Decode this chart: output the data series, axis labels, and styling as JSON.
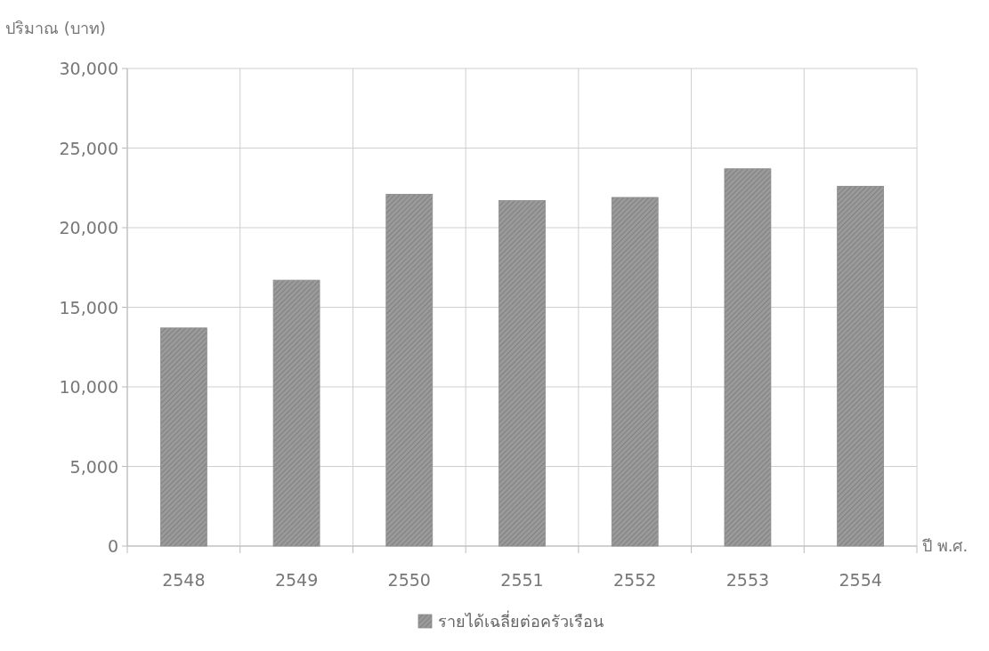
{
  "chart_data": {
    "type": "bar",
    "ylabel": "ปริมาณ (บาท)",
    "xlabel": "ปี พ.ศ.",
    "categories": [
      "2548",
      "2549",
      "2550",
      "2551",
      "2552",
      "2553",
      "2554"
    ],
    "series": [
      {
        "name": "รายได้เฉลี่ยต่อครัวเรือน",
        "color": "#9a9a9a",
        "values": [
          13700,
          16700,
          22100,
          21700,
          21900,
          23700,
          22600
        ]
      }
    ],
    "ylim": [
      0,
      30000
    ],
    "yticks": [
      0,
      {
        "value": 5000,
        "label": "5,000"
      },
      {
        "value": 10000,
        "label": "10,000"
      },
      {
        "value": 15000,
        "label": "15,000"
      },
      {
        "value": 20000,
        "label": "20,000"
      },
      {
        "value": 25000,
        "label": "25,000"
      },
      {
        "value": 30000,
        "label": "30,000"
      }
    ],
    "grid": true,
    "legend": "bottom"
  }
}
